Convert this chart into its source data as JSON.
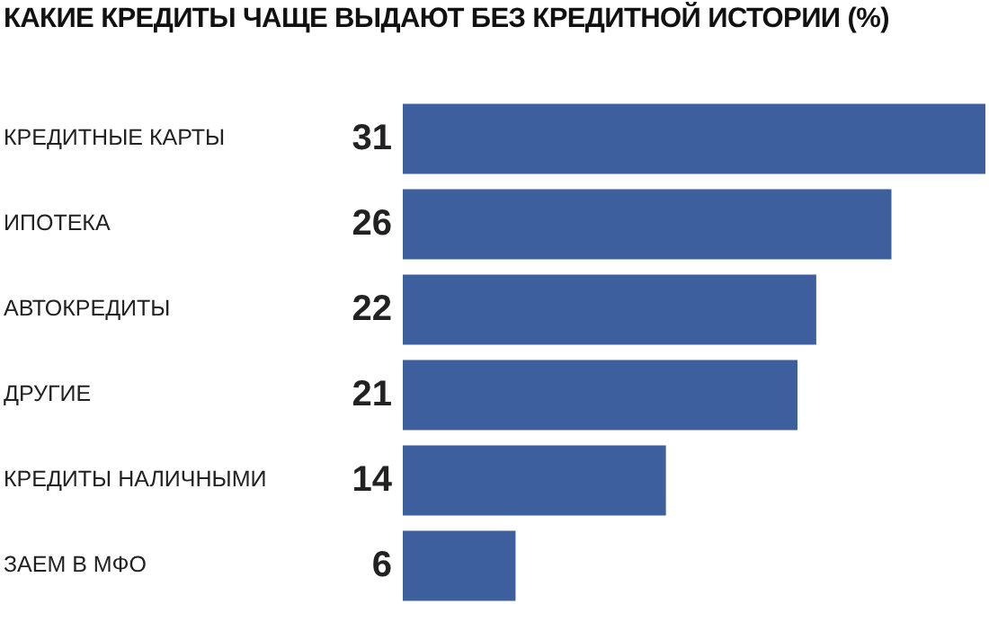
{
  "chart_data": {
    "type": "bar",
    "orientation": "horizontal",
    "title": "КАКИЕ КРЕДИТЫ ЧАЩЕ ВЫДАЮТ БЕЗ КРЕДИТНОЙ ИСТОРИИ (%)",
    "categories": [
      "КРЕДИТНЫЕ КАРТЫ",
      "ИПОТЕКА",
      "АВТОКРЕДИТЫ",
      "ДРУГИЕ",
      "КРЕДИТЫ НАЛИЧНЫМИ",
      "ЗАЕМ В МФО"
    ],
    "values": [
      31,
      26,
      22,
      21,
      14,
      6
    ],
    "color": "#3d5f9e",
    "data_labels": true,
    "grid": false,
    "legend": false
  }
}
